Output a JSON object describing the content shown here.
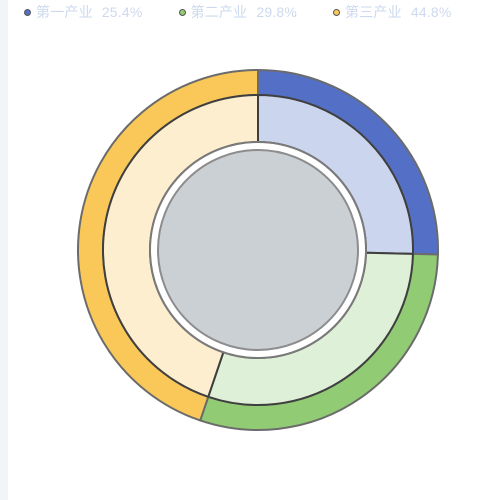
{
  "chart_data": {
    "type": "pie",
    "subtype": "nested-donut",
    "title": "",
    "legend_position": "top",
    "series": [
      {
        "name": "第一产业",
        "value": 25.4,
        "label": "25.4%",
        "color": "#5470c6",
        "inner_color": "#ccd5ee"
      },
      {
        "name": "第二产业",
        "value": 29.8,
        "label": "29.8%",
        "color": "#91cc75",
        "inner_color": "#def0d7"
      },
      {
        "name": "第三产业",
        "value": 44.8,
        "label": "44.8%",
        "color": "#fac858",
        "inner_color": "#fdeed0"
      }
    ],
    "center_color": "#cbd0d5"
  }
}
